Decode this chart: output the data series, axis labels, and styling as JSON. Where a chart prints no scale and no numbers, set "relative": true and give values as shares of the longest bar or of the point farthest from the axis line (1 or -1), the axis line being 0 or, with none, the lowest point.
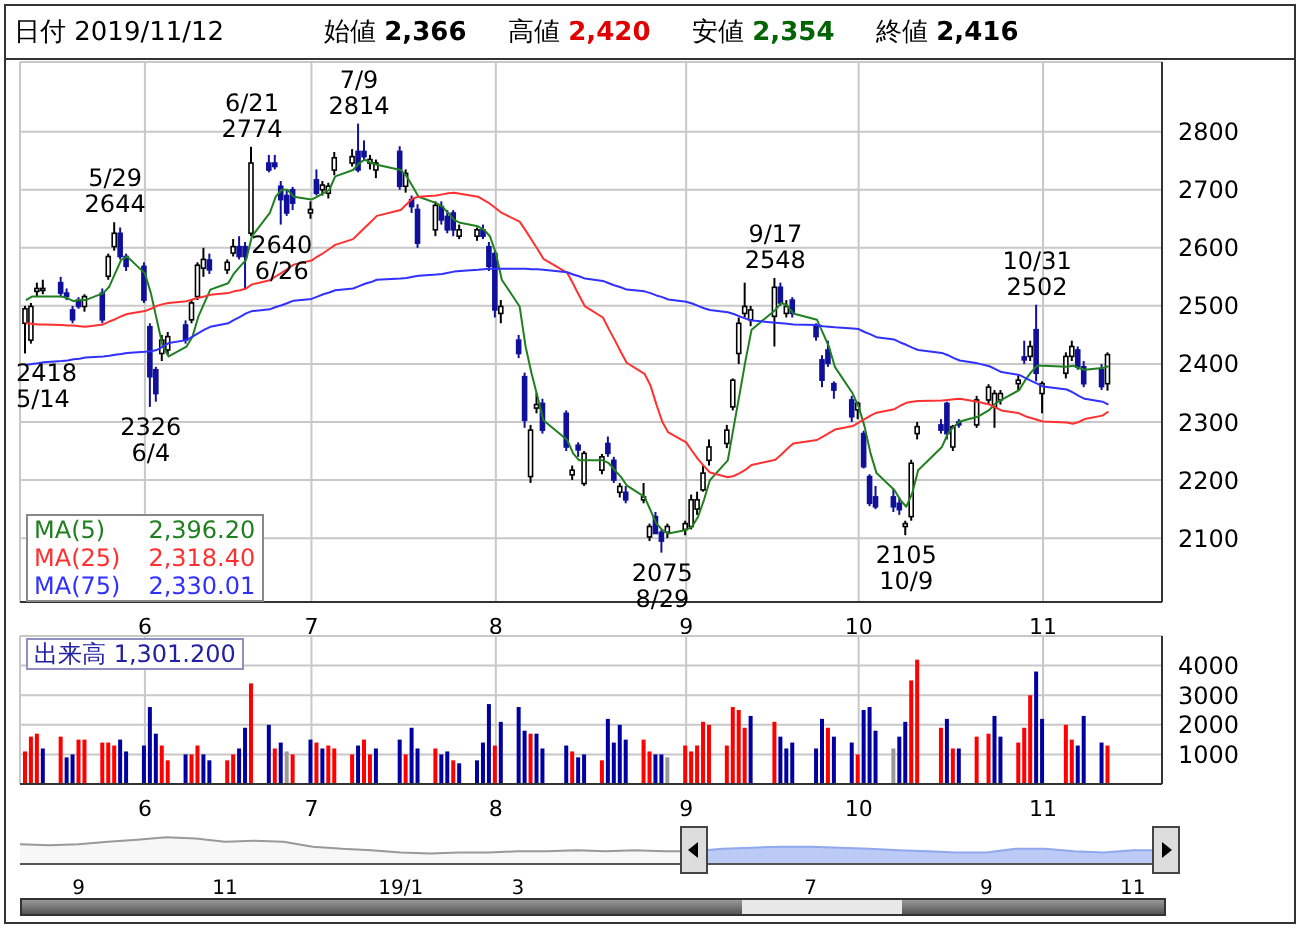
{
  "chart_data": [
    {
      "type": "candlestick",
      "title": "日付 2019/11/12",
      "legend": "bottom left",
      "grid": true,
      "annotations": [
        "始値 2,366",
        "高値 2,420",
        "安値 2,354",
        "終値 2,416",
        {
          "text": "2418 5/14",
          "x": "2019-05-14",
          "y": 2418
        },
        {
          "text": "5/29 2644",
          "x": "2019-05-29",
          "y": 2644
        },
        {
          "text": "2326 6/4",
          "x": "2019-06-04",
          "y": 2326
        },
        {
          "text": "6/21 2774",
          "x": "2019-06-21",
          "y": 2774
        },
        {
          "text": "2640 6/26",
          "x": "2019-06-26",
          "y": 2640
        },
        {
          "text": "7/9 2814",
          "x": "2019-07-09",
          "y": 2814
        },
        {
          "text": "2075 8/29",
          "x": "2019-08-29",
          "y": 2075
        },
        {
          "text": "9/17 2548",
          "x": "2019-09-17",
          "y": 2548
        },
        {
          "text": "2105 10/9",
          "x": "2019-10-09",
          "y": 2105
        },
        {
          "text": "10/31 2502",
          "x": "2019-10-31",
          "y": 2502
        }
      ],
      "x": [
        "2019-05-14",
        "2019-05-15",
        "2019-05-16",
        "2019-05-17",
        "2019-05-20",
        "2019-05-21",
        "2019-05-22",
        "2019-05-23",
        "2019-05-24",
        "2019-05-27",
        "2019-05-28",
        "2019-05-29",
        "2019-05-30",
        "2019-05-31",
        "2019-06-03",
        "2019-06-04",
        "2019-06-05",
        "2019-06-06",
        "2019-06-07",
        "2019-06-10",
        "2019-06-11",
        "2019-06-12",
        "2019-06-13",
        "2019-06-14",
        "2019-06-17",
        "2019-06-18",
        "2019-06-19",
        "2019-06-20",
        "2019-06-21",
        "2019-06-24",
        "2019-06-25",
        "2019-06-26",
        "2019-06-27",
        "2019-06-28",
        "2019-07-01",
        "2019-07-02",
        "2019-07-03",
        "2019-07-04",
        "2019-07-05",
        "2019-07-08",
        "2019-07-09",
        "2019-07-10",
        "2019-07-11",
        "2019-07-12",
        "2019-07-16",
        "2019-07-17",
        "2019-07-18",
        "2019-07-19",
        "2019-07-22",
        "2019-07-23",
        "2019-07-24",
        "2019-07-25",
        "2019-07-26",
        "2019-07-29",
        "2019-07-30",
        "2019-07-31",
        "2019-08-01",
        "2019-08-02",
        "2019-08-05",
        "2019-08-06",
        "2019-08-07",
        "2019-08-08",
        "2019-08-09",
        "2019-08-13",
        "2019-08-14",
        "2019-08-15",
        "2019-08-16",
        "2019-08-19",
        "2019-08-20",
        "2019-08-21",
        "2019-08-22",
        "2019-08-23",
        "2019-08-26",
        "2019-08-27",
        "2019-08-28",
        "2019-08-29",
        "2019-08-30",
        "2019-09-02",
        "2019-09-03",
        "2019-09-04",
        "2019-09-05",
        "2019-09-06",
        "2019-09-09",
        "2019-09-10",
        "2019-09-11",
        "2019-09-12",
        "2019-09-13",
        "2019-09-17",
        "2019-09-18",
        "2019-09-19",
        "2019-09-20",
        "2019-09-24",
        "2019-09-25",
        "2019-09-26",
        "2019-09-27",
        "2019-09-30",
        "2019-10-01",
        "2019-10-02",
        "2019-10-03",
        "2019-10-04",
        "2019-10-07",
        "2019-10-08",
        "2019-10-09",
        "2019-10-10",
        "2019-10-11",
        "2019-10-15",
        "2019-10-16",
        "2019-10-17",
        "2019-10-18",
        "2019-10-21",
        "2019-10-23",
        "2019-10-24",
        "2019-10-25",
        "2019-10-28",
        "2019-10-29",
        "2019-10-30",
        "2019-10-31",
        "2019-11-01",
        "2019-11-05",
        "2019-11-06",
        "2019-11-07",
        "2019-11-08",
        "2019-11-11",
        "2019-11-12"
      ],
      "ohlc": [
        [
          2470,
          2500,
          2418,
          2495
        ],
        [
          2441,
          2505,
          2435,
          2499
        ],
        [
          2525,
          2540,
          2515,
          2530
        ],
        [
          2528,
          2545,
          2520,
          2530
        ],
        [
          2540,
          2550,
          2515,
          2522
        ],
        [
          2522,
          2530,
          2510,
          2516
        ],
        [
          2493,
          2500,
          2470,
          2476
        ],
        [
          2510,
          2515,
          2495,
          2499
        ],
        [
          2499,
          2520,
          2490,
          2516
        ],
        [
          2522,
          2530,
          2470,
          2476
        ],
        [
          2551,
          2590,
          2545,
          2585
        ],
        [
          2602,
          2644,
          2595,
          2625
        ],
        [
          2625,
          2635,
          2580,
          2585
        ],
        [
          2585,
          2590,
          2560,
          2568
        ],
        [
          2568,
          2575,
          2505,
          2510
        ],
        [
          2464,
          2470,
          2326,
          2378
        ],
        [
          2390,
          2395,
          2335,
          2349
        ],
        [
          2418,
          2450,
          2405,
          2441
        ],
        [
          2424,
          2455,
          2415,
          2447
        ],
        [
          2467,
          2475,
          2435,
          2441
        ],
        [
          2476,
          2510,
          2470,
          2505
        ],
        [
          2516,
          2575,
          2510,
          2570
        ],
        [
          2565,
          2600,
          2550,
          2580
        ],
        [
          2579,
          2590,
          2555,
          2562
        ],
        [
          2562,
          2580,
          2555,
          2575
        ],
        [
          2591,
          2615,
          2585,
          2602
        ],
        [
          2602,
          2620,
          2580,
          2585
        ],
        [
          2602,
          2610,
          2528,
          2585
        ],
        [
          2625,
          2774,
          2620,
          2746
        ],
        [
          2746,
          2760,
          2730,
          2734
        ],
        [
          2746,
          2760,
          2735,
          2740
        ],
        [
          2706,
          2715,
          2640,
          2683
        ],
        [
          2690,
          2700,
          2655,
          2660
        ],
        [
          2700,
          2705,
          2665,
          2677
        ],
        [
          2660,
          2680,
          2650,
          2666
        ],
        [
          2717,
          2735,
          2690,
          2694
        ],
        [
          2700,
          2715,
          2690,
          2708
        ],
        [
          2694,
          2712,
          2685,
          2706
        ],
        [
          2734,
          2765,
          2725,
          2755
        ],
        [
          2746,
          2770,
          2740,
          2757
        ],
        [
          2766,
          2814,
          2730,
          2734
        ],
        [
          2766,
          2785,
          2750,
          2757
        ],
        [
          2746,
          2760,
          2735,
          2752
        ],
        [
          2734,
          2752,
          2720,
          2746
        ],
        [
          2766,
          2775,
          2700,
          2706
        ],
        [
          2706,
          2735,
          2695,
          2728
        ],
        [
          2683,
          2690,
          2660,
          2671
        ],
        [
          2666,
          2675,
          2600,
          2608
        ],
        [
          2631,
          2680,
          2620,
          2673
        ],
        [
          2671,
          2680,
          2640,
          2648
        ],
        [
          2654,
          2665,
          2625,
          2631
        ],
        [
          2660,
          2665,
          2620,
          2631
        ],
        [
          2620,
          2640,
          2615,
          2631
        ],
        [
          2620,
          2635,
          2612,
          2631
        ],
        [
          2631,
          2640,
          2615,
          2620
        ],
        [
          2602,
          2610,
          2560,
          2568
        ],
        [
          2590,
          2595,
          2480,
          2493
        ],
        [
          2487,
          2510,
          2470,
          2499
        ],
        [
          2441,
          2450,
          2410,
          2418
        ],
        [
          2378,
          2385,
          2290,
          2303
        ],
        [
          2206,
          2295,
          2195,
          2286
        ],
        [
          2324,
          2350,
          2315,
          2330
        ],
        [
          2332,
          2340,
          2280,
          2286
        ],
        [
          2315,
          2320,
          2250,
          2257
        ],
        [
          2209,
          2225,
          2200,
          2217
        ],
        [
          2260,
          2265,
          2240,
          2252
        ],
        [
          2194,
          2250,
          2190,
          2246
        ],
        [
          2217,
          2245,
          2210,
          2240
        ],
        [
          2263,
          2275,
          2240,
          2246
        ],
        [
          2234,
          2240,
          2195,
          2200
        ],
        [
          2179,
          2195,
          2170,
          2189
        ],
        [
          2179,
          2190,
          2160,
          2166
        ],
        [
          2166,
          2195,
          2160,
          2171
        ],
        [
          2102,
          2125,
          2095,
          2120
        ],
        [
          2137,
          2145,
          2108,
          2108
        ],
        [
          2110,
          2115,
          2075,
          2095
        ],
        [
          2110,
          2125,
          2100,
          2120
        ],
        [
          2115,
          2130,
          2105,
          2125
        ],
        [
          2120,
          2175,
          2115,
          2166
        ],
        [
          2150,
          2180,
          2140,
          2166
        ],
        [
          2183,
          2225,
          2180,
          2212
        ],
        [
          2234,
          2270,
          2225,
          2257
        ],
        [
          2263,
          2295,
          2255,
          2286
        ],
        [
          2326,
          2375,
          2320,
          2372
        ],
        [
          2418,
          2480,
          2400,
          2470
        ],
        [
          2487,
          2540,
          2480,
          2499
        ],
        [
          2476,
          2500,
          2465,
          2493
        ],
        [
          2482,
          2548,
          2430,
          2532
        ],
        [
          2532,
          2540,
          2500,
          2505
        ],
        [
          2487,
          2510,
          2480,
          2499
        ],
        [
          2510,
          2515,
          2480,
          2487
        ],
        [
          2464,
          2470,
          2440,
          2447
        ],
        [
          2407,
          2415,
          2360,
          2372
        ],
        [
          2424,
          2440,
          2395,
          2401
        ],
        [
          2366,
          2370,
          2340,
          2355
        ],
        [
          2338,
          2345,
          2300,
          2309
        ],
        [
          2321,
          2335,
          2305,
          2332
        ],
        [
          2280,
          2285,
          2220,
          2223
        ],
        [
          2206,
          2210,
          2155,
          2160
        ],
        [
          2171,
          2190,
          2150,
          2154
        ],
        [
          2171,
          2185,
          2145,
          2154
        ],
        [
          2160,
          2170,
          2140,
          2149
        ],
        [
          2120,
          2130,
          2105,
          2125
        ],
        [
          2137,
          2235,
          2130,
          2229
        ],
        [
          2280,
          2300,
          2270,
          2292
        ],
        [
          2295,
          2305,
          2280,
          2286
        ],
        [
          2332,
          2335,
          2270,
          2280
        ],
        [
          2257,
          2295,
          2250,
          2292
        ],
        [
          2300,
          2305,
          2290,
          2295
        ],
        [
          2295,
          2345,
          2290,
          2338
        ],
        [
          2338,
          2365,
          2330,
          2360
        ],
        [
          2326,
          2355,
          2290,
          2349
        ],
        [
          2338,
          2355,
          2330,
          2349
        ],
        [
          2366,
          2380,
          2355,
          2372
        ],
        [
          2412,
          2440,
          2400,
          2407
        ],
        [
          2413,
          2440,
          2405,
          2430
        ],
        [
          2459,
          2502,
          2370,
          2384
        ],
        [
          2349,
          2370,
          2315,
          2366
        ],
        [
          2384,
          2420,
          2375,
          2413
        ],
        [
          2413,
          2440,
          2405,
          2430
        ],
        [
          2424,
          2430,
          2390,
          2395
        ],
        [
          2395,
          2405,
          2360,
          2366
        ],
        [
          2390,
          2400,
          2355,
          2361
        ],
        [
          2366,
          2420,
          2354,
          2416
        ]
      ],
      "series": [
        {
          "type": "line",
          "name": "MA(5) 2,396.20",
          "color": "#208020",
          "values": [
            2510,
            2516,
            2516,
            2516,
            2516,
            2513,
            2508,
            2510,
            2510,
            2522,
            2533,
            2556,
            2579,
            2585,
            2556,
            2522,
            2476,
            2430,
            2413,
            2430,
            2447,
            2482,
            2505,
            2528,
            2539,
            2556,
            2568,
            2579,
            2620,
            2660,
            2688,
            2700,
            2700,
            2688,
            2683,
            2688,
            2694,
            2700,
            2723,
            2734,
            2746,
            2752,
            2746,
            2743,
            2734,
            2723,
            2706,
            2688,
            2677,
            2671,
            2660,
            2648,
            2643,
            2637,
            2631,
            2620,
            2591,
            2545,
            2499,
            2430,
            2384,
            2344,
            2303,
            2269,
            2246,
            2234,
            2234,
            2234,
            2229,
            2217,
            2206,
            2191,
            2171,
            2148,
            2125,
            2114,
            2108,
            2114,
            2120,
            2137,
            2166,
            2200,
            2234,
            2292,
            2349,
            2407,
            2459,
            2493,
            2505,
            2501,
            2487,
            2476,
            2453,
            2430,
            2395,
            2349,
            2326,
            2292,
            2246,
            2212,
            2183,
            2166,
            2154,
            2177,
            2217,
            2257,
            2280,
            2292,
            2301,
            2309,
            2321,
            2332,
            2338,
            2355,
            2372,
            2386,
            2397,
            2397,
            2395,
            2397,
            2393,
            2390,
            2393,
            2396
          ]
        },
        {
          "type": "line",
          "name": "MA(25) 2,318.40",
          "color": "#ff3030",
          "values": [
            2470,
            2469,
            2468,
            2468,
            2467,
            2466,
            2466,
            2465,
            2464,
            2468,
            2473,
            2477,
            2482,
            2486,
            2491,
            2495,
            2500,
            2503,
            2505,
            2508,
            2511,
            2514,
            2516,
            2519,
            2522,
            2525,
            2527,
            2530,
            2537,
            2544,
            2551,
            2557,
            2564,
            2571,
            2578,
            2585,
            2591,
            2598,
            2605,
            2615,
            2625,
            2635,
            2645,
            2655,
            2665,
            2675,
            2685,
            2688,
            2690,
            2692,
            2694,
            2695,
            2693,
            2688,
            2682,
            2676,
            2668,
            2660,
            2645,
            2630,
            2614,
            2598,
            2581,
            2557,
            2538,
            2518,
            2499,
            2480,
            2460,
            2441,
            2421,
            2402,
            2383,
            2363,
            2330,
            2300,
            2282,
            2265,
            2250,
            2236,
            2224,
            2213,
            2205,
            2207,
            2212,
            2218,
            2226,
            2235,
            2244,
            2254,
            2263,
            2269,
            2275,
            2281,
            2287,
            2293,
            2299,
            2305,
            2311,
            2316,
            2322,
            2328,
            2333,
            2335,
            2336,
            2337,
            2338,
            2339,
            2340,
            2335,
            2330,
            2325,
            2320,
            2315,
            2310,
            2307,
            2304,
            2301,
            2299,
            2297,
            2300,
            2305,
            2311,
            2318
          ]
        },
        {
          "type": "line",
          "name": "MA(75) 2,330.01",
          "color": "#3030ff",
          "values": [
            2398,
            2400,
            2401,
            2403,
            2405,
            2406,
            2408,
            2409,
            2411,
            2413,
            2414,
            2416,
            2417,
            2419,
            2421,
            2422,
            2424,
            2430,
            2436,
            2441,
            2447,
            2453,
            2459,
            2464,
            2470,
            2476,
            2481,
            2487,
            2491,
            2494,
            2498,
            2501,
            2505,
            2509,
            2512,
            2516,
            2520,
            2523,
            2527,
            2530,
            2534,
            2538,
            2541,
            2545,
            2547,
            2548,
            2550,
            2552,
            2554,
            2555,
            2557,
            2559,
            2560,
            2562,
            2563,
            2564,
            2564,
            2564,
            2564,
            2564,
            2563,
            2563,
            2562,
            2558,
            2554,
            2551,
            2547,
            2543,
            2539,
            2535,
            2532,
            2528,
            2525,
            2522,
            2518,
            2515,
            2511,
            2507,
            2504,
            2500,
            2496,
            2493,
            2489,
            2486,
            2482,
            2478,
            2475,
            2471,
            2470,
            2469,
            2468,
            2467,
            2465,
            2464,
            2463,
            2461,
            2460,
            2455,
            2451,
            2446,
            2442,
            2437,
            2433,
            2428,
            2424,
            2419,
            2415,
            2410,
            2406,
            2401,
            2396,
            2391,
            2386,
            2381,
            2376,
            2371,
            2366,
            2361,
            2356,
            2351,
            2345,
            2340,
            2335,
            2330
          ]
        }
      ],
      "xlim": [
        "2019-05-13",
        "2019-11-21"
      ],
      "ylim": [
        1990,
        2920
      ],
      "yticks": [
        2100,
        2200,
        2300,
        2400,
        2500,
        2600,
        2700,
        2800
      ],
      "xticks": [
        {
          "value": "2019-06-03",
          "label": "6"
        },
        {
          "value": "2019-07-01",
          "label": "7"
        },
        {
          "value": "2019-08-01",
          "label": "8"
        },
        {
          "value": "2019-09-02",
          "label": "9"
        },
        {
          "value": "2019-10-01",
          "label": "10"
        },
        {
          "value": "2019-11-01",
          "label": "11"
        }
      ]
    },
    {
      "type": "bar",
      "title": "出来高 1,301.200",
      "grid": true,
      "x": [
        "2019-05-14",
        "2019-05-15",
        "2019-05-16",
        "2019-05-17",
        "2019-05-20",
        "2019-05-21",
        "2019-05-22",
        "2019-05-23",
        "2019-05-24",
        "2019-05-27",
        "2019-05-28",
        "2019-05-29",
        "2019-05-30",
        "2019-05-31",
        "2019-06-03",
        "2019-06-04",
        "2019-06-05",
        "2019-06-06",
        "2019-06-07",
        "2019-06-10",
        "2019-06-11",
        "2019-06-12",
        "2019-06-13",
        "2019-06-14",
        "2019-06-17",
        "2019-06-18",
        "2019-06-19",
        "2019-06-20",
        "2019-06-21",
        "2019-06-24",
        "2019-06-25",
        "2019-06-26",
        "2019-06-27",
        "2019-06-28",
        "2019-07-01",
        "2019-07-02",
        "2019-07-03",
        "2019-07-04",
        "2019-07-05",
        "2019-07-08",
        "2019-07-09",
        "2019-07-10",
        "2019-07-11",
        "2019-07-12",
        "2019-07-16",
        "2019-07-17",
        "2019-07-18",
        "2019-07-19",
        "2019-07-22",
        "2019-07-23",
        "2019-07-24",
        "2019-07-25",
        "2019-07-26",
        "2019-07-29",
        "2019-07-30",
        "2019-07-31",
        "2019-08-01",
        "2019-08-02",
        "2019-08-05",
        "2019-08-06",
        "2019-08-07",
        "2019-08-08",
        "2019-08-09",
        "2019-08-13",
        "2019-08-14",
        "2019-08-15",
        "2019-08-16",
        "2019-08-19",
        "2019-08-20",
        "2019-08-21",
        "2019-08-22",
        "2019-08-23",
        "2019-08-26",
        "2019-08-27",
        "2019-08-28",
        "2019-08-29",
        "2019-08-30",
        "2019-09-02",
        "2019-09-03",
        "2019-09-04",
        "2019-09-05",
        "2019-09-06",
        "2019-09-09",
        "2019-09-10",
        "2019-09-11",
        "2019-09-12",
        "2019-09-13",
        "2019-09-17",
        "2019-09-18",
        "2019-09-19",
        "2019-09-20",
        "2019-09-24",
        "2019-09-25",
        "2019-09-26",
        "2019-09-27",
        "2019-09-30",
        "2019-10-01",
        "2019-10-02",
        "2019-10-03",
        "2019-10-04",
        "2019-10-07",
        "2019-10-08",
        "2019-10-09",
        "2019-10-10",
        "2019-10-11",
        "2019-10-15",
        "2019-10-16",
        "2019-10-17",
        "2019-10-18",
        "2019-10-21",
        "2019-10-23",
        "2019-10-24",
        "2019-10-25",
        "2019-10-28",
        "2019-10-29",
        "2019-10-30",
        "2019-10-31",
        "2019-11-01",
        "2019-11-05",
        "2019-11-06",
        "2019-11-07",
        "2019-11-08",
        "2019-11-11",
        "2019-11-12"
      ],
      "values": [
        1100,
        1600,
        1700,
        1200,
        1600,
        900,
        1000,
        1500,
        1500,
        1400,
        1400,
        1300,
        1500,
        1100,
        1300,
        2600,
        1700,
        1300,
        800,
        1000,
        1000,
        1300,
        1000,
        800,
        800,
        1000,
        1200,
        1900,
        3400,
        2000,
        1200,
        1400,
        1100,
        1000,
        1500,
        1400,
        1200,
        1300,
        1200,
        1000,
        1300,
        1500,
        1000,
        1200,
        1500,
        1000,
        1900,
        1200,
        1200,
        1000,
        1100,
        800,
        700,
        800,
        1400,
        2700,
        1300,
        2100,
        2600,
        1800,
        1700,
        1700,
        1200,
        1300,
        1100,
        900,
        1000,
        800,
        2200,
        1400,
        2000,
        1500,
        1500,
        1100,
        1000,
        1000,
        900,
        1300,
        1100,
        1300,
        2100,
        2000,
        1300,
        2600,
        2500,
        1900,
        2300,
        2100,
        1600,
        1200,
        1400,
        1200,
        2200,
        1900,
        1600,
        1400,
        1000,
        2500,
        2600,
        1800,
        1200,
        1600,
        2100,
        3500,
        4200,
        1900,
        2200,
        1200,
        1200,
        1600,
        1700,
        2300,
        1600,
        1400,
        1900,
        3000,
        3800,
        2200,
        2000,
        1500,
        1300,
        2300,
        1400,
        1300
      ],
      "colors": [
        "#ff0000",
        "#ff0000",
        "#ff0000",
        "#0000a0",
        "#ff0000",
        "#0000a0",
        "#0000a0",
        "#ff0000",
        "#ff0000",
        "#ff0000",
        "#ff0000",
        "#ff0000",
        "#0000a0",
        "#0000a0",
        "#0000a0",
        "#0000a0",
        "#0000a0",
        "#ff0000",
        "#ff0000",
        "#0000a0",
        "#ff0000",
        "#ff0000",
        "#0000a0",
        "#0000a0",
        "#ff0000",
        "#ff0000",
        "#0000a0",
        "#0000a0",
        "#ff0000",
        "#0000a0",
        "#ff0000",
        "#0000a0",
        "#999999",
        "#ff0000",
        "#0000a0",
        "#ff0000",
        "#0000a0",
        "#ff0000",
        "#ff0000",
        "#ff0000",
        "#0000a0",
        "#ff0000",
        "#ff0000",
        "#0000a0",
        "#0000a0",
        "#ff0000",
        "#0000a0",
        "#0000a0",
        "#ff0000",
        "#0000a0",
        "#0000a0",
        "#ff0000",
        "#0000a0",
        "#0000a0",
        "#0000a0",
        "#0000a0",
        "#ff0000",
        "#0000a0",
        "#0000a0",
        "#0000a0",
        "#ff0000",
        "#0000a0",
        "#0000a0",
        "#0000a0",
        "#ff0000",
        "#0000a0",
        "#0000a0",
        "#ff0000",
        "#0000a0",
        "#0000a0",
        "#0000a0",
        "#0000a0",
        "#ff0000",
        "#ff0000",
        "#0000a0",
        "#0000a0",
        "#999999",
        "#ff0000",
        "#ff0000",
        "#ff0000",
        "#ff0000",
        "#ff0000",
        "#ff0000",
        "#ff0000",
        "#ff0000",
        "#ff0000",
        "#0000a0",
        "#ff0000",
        "#0000a0",
        "#0000a0",
        "#0000a0",
        "#0000a0",
        "#0000a0",
        "#ff0000",
        "#0000a0",
        "#0000a0",
        "#ff0000",
        "#0000a0",
        "#0000a0",
        "#0000a0",
        "#999999",
        "#0000a0",
        "#0000a0",
        "#ff0000",
        "#ff0000",
        "#ff0000",
        "#0000a0",
        "#ff0000",
        "#0000a0",
        "#ff0000",
        "#ff0000",
        "#0000a0",
        "#0000a0",
        "#ff0000",
        "#ff0000",
        "#ff0000",
        "#0000a0",
        "#0000a0",
        "#ff0000",
        "#ff0000",
        "#0000a0",
        "#0000a0",
        "#0000a0",
        "#ff0000"
      ],
      "xlim": [
        "2019-05-13",
        "2019-11-21"
      ],
      "ylim": [
        0,
        5000
      ],
      "yticks": [
        1000,
        2000,
        3000,
        4000
      ],
      "xticks": [
        {
          "value": "2019-06-03",
          "label": "6"
        },
        {
          "value": "2019-07-01",
          "label": "7"
        },
        {
          "value": "2019-08-01",
          "label": "8"
        },
        {
          "value": "2019-09-02",
          "label": "9"
        },
        {
          "value": "2019-10-01",
          "label": "10"
        },
        {
          "value": "2019-11-01",
          "label": "11"
        }
      ]
    },
    {
      "type": "area",
      "relative": true,
      "tick_labels": "x",
      "categories": [
        null,
        null,
        "9",
        null,
        null,
        null,
        null,
        "11",
        null,
        null,
        null,
        null,
        null,
        "19/1",
        null,
        null,
        null,
        "3",
        null,
        null,
        null,
        null,
        null,
        null,
        null,
        null,
        null,
        "7",
        null,
        null,
        null,
        null,
        null,
        "9",
        null,
        null,
        null,
        null,
        "11",
        null
      ],
      "series": [
        {
          "color": "#999999",
          "values": [
            0.74,
            0.7,
            0.74,
            0.83,
            0.91,
            1,
            0.96,
            0.83,
            0.87,
            0.83,
            0.65,
            0.57,
            0.52,
            0.43,
            0.39,
            0.43,
            0.43,
            0.48,
            0.48,
            0.52,
            0.48,
            0.52,
            0.48,
            0.48,
            null,
            null,
            null,
            null,
            null,
            null,
            null,
            null,
            null,
            null,
            null,
            null,
            null,
            null,
            null,
            null
          ]
        },
        {
          "color": "#8fa8ee",
          "values": [
            null,
            null,
            null,
            null,
            null,
            null,
            null,
            null,
            null,
            null,
            null,
            null,
            null,
            null,
            null,
            null,
            null,
            null,
            null,
            null,
            null,
            null,
            null,
            0.48,
            0.57,
            0.61,
            0.65,
            0.65,
            0.61,
            0.57,
            0.52,
            0.48,
            0.43,
            0.43,
            0.57,
            0.57,
            0.48,
            0.43,
            0.52,
            0.52
          ]
        }
      ]
    }
  ]
}
